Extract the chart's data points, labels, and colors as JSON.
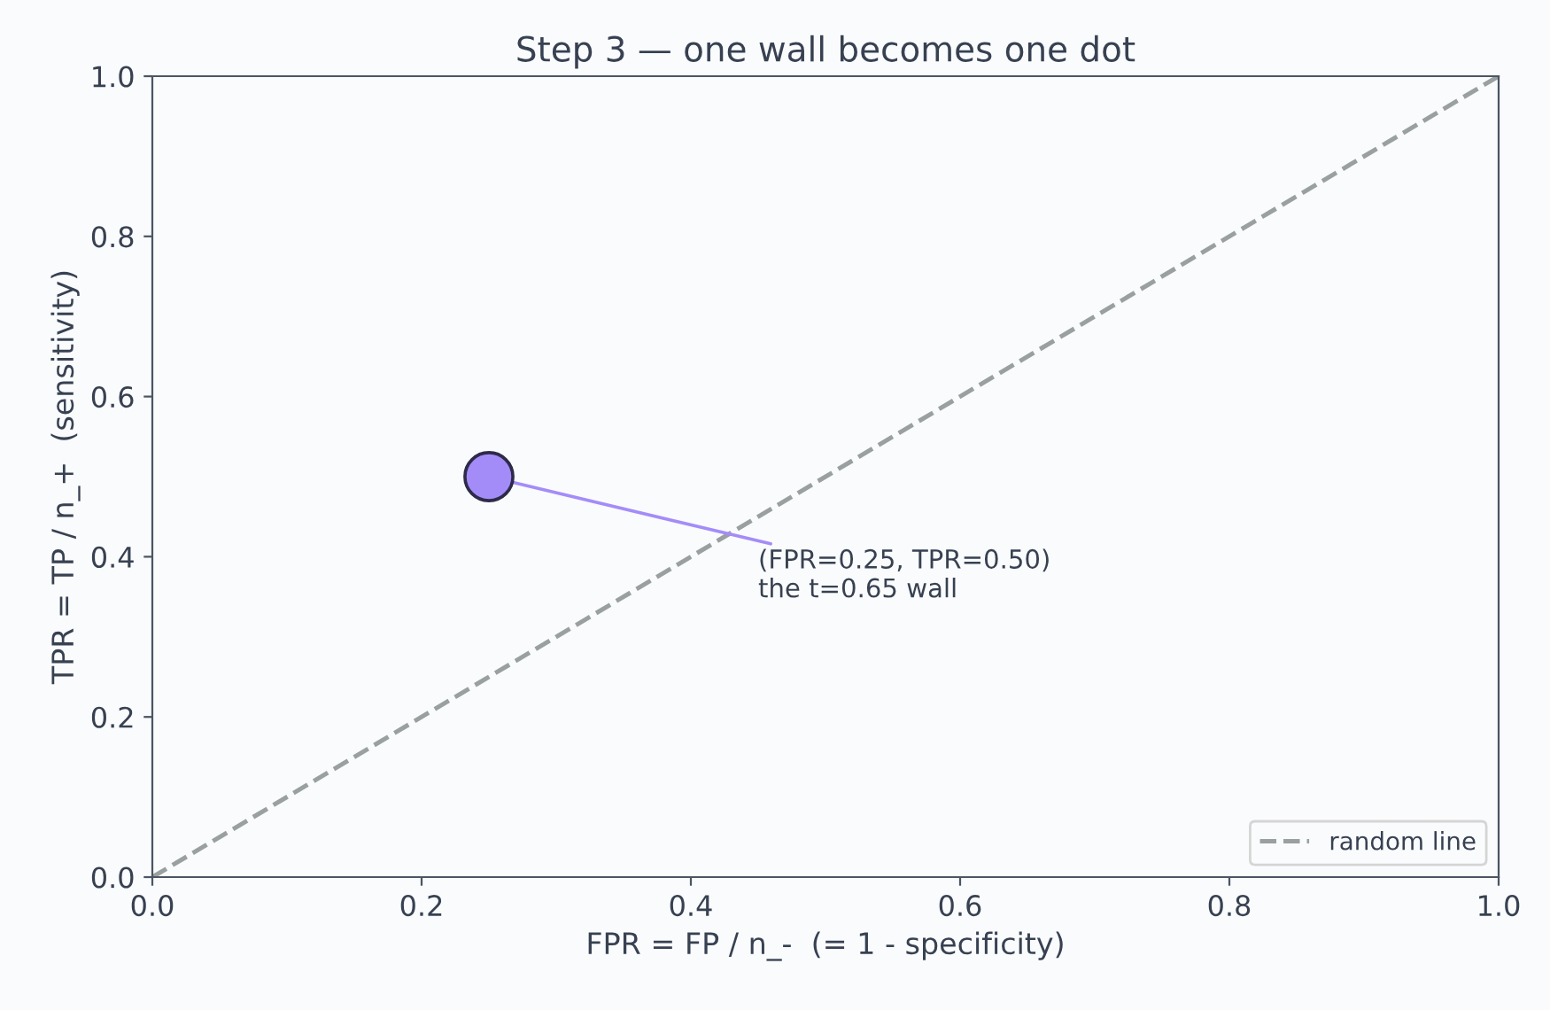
{
  "chart_data": {
    "type": "scatter",
    "title": "Step 3 — one wall becomes one dot",
    "xlabel": "FPR = FP / n_-  (= 1 - specificity)",
    "ylabel": "TPR = TP / n_+  (sensitivity)",
    "x": [
      0.25
    ],
    "series": [
      {
        "color": "#a48cf8",
        "values": [
          0.5
        ],
        "marker": "circle"
      },
      {
        "type": "line",
        "name": "random line",
        "color": "#9aa0a0",
        "x": [
          0,
          1
        ],
        "values": [
          0,
          1
        ],
        "line_style": "dashed",
        "marker": "none"
      }
    ],
    "annotations": [
      {
        "text": "(FPR=0.25, TPR=0.50)\nthe t=0.65 wall",
        "x": 0.25,
        "y": 0.5
      }
    ],
    "xlim": [
      0,
      1
    ],
    "ylim": [
      0,
      1
    ],
    "xticks": [
      {
        "value": 0,
        "label": "0.0"
      },
      0.2,
      0.4,
      0.6,
      0.8,
      {
        "value": 1,
        "label": "1.0"
      }
    ],
    "yticks": [
      {
        "value": 0,
        "label": "0.0"
      },
      0.2,
      0.4,
      0.6,
      0.8,
      {
        "value": 1,
        "label": "1.0"
      }
    ],
    "grid": false,
    "legend": "bottom right"
  }
}
